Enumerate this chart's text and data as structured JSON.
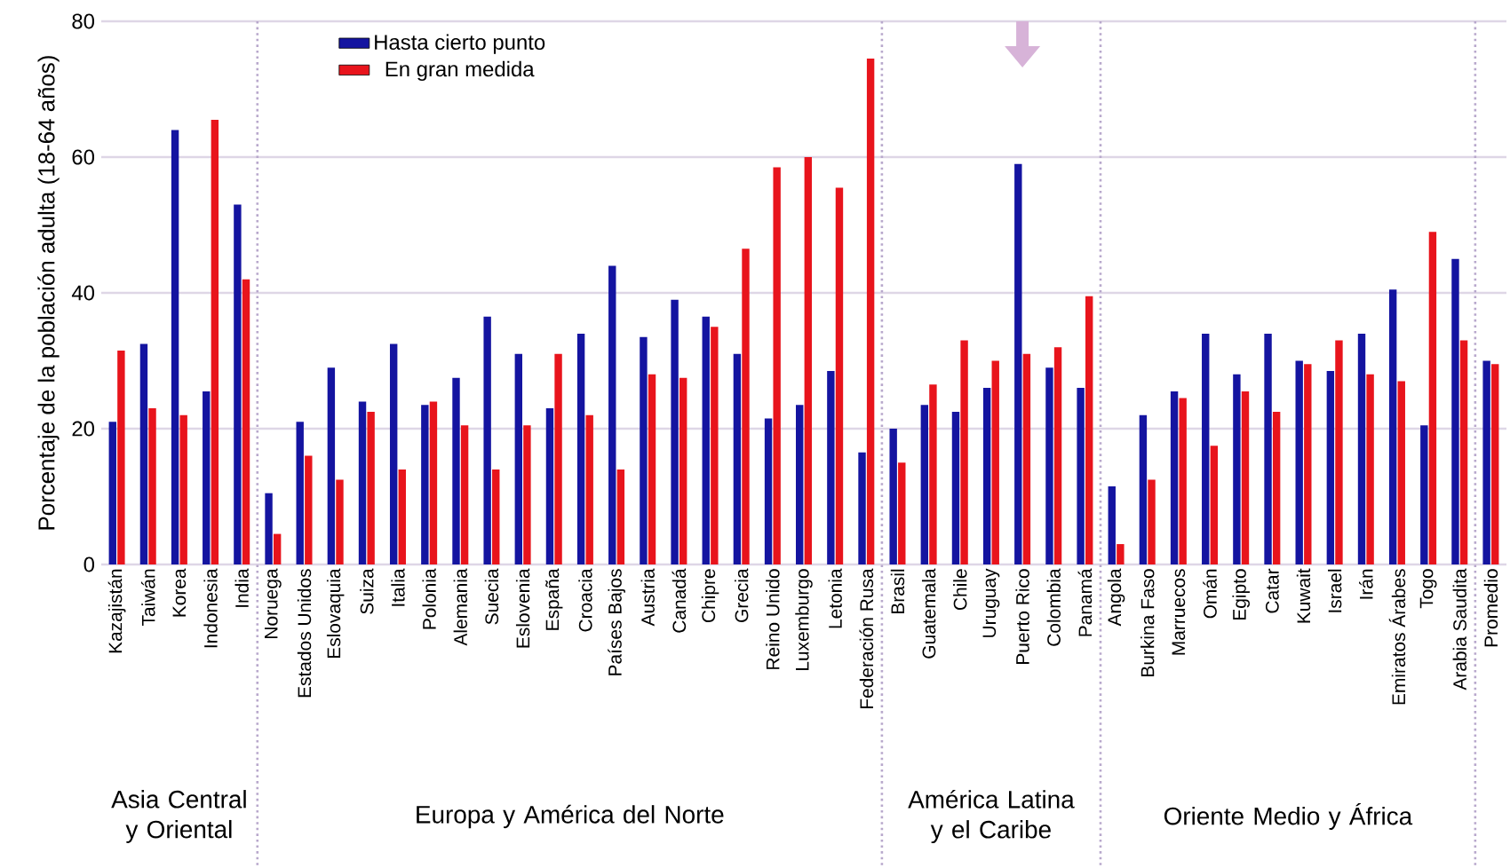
{
  "chart_data": {
    "type": "bar",
    "ylabel": "Porcentaje de la población adulta (18-64 años)",
    "categories": [
      "Kazajistán",
      "Taiwán",
      "Korea",
      "Indonesia",
      "India",
      "Noruega",
      "Estados Unidos",
      "Eslovaquia",
      "Suiza",
      "Italia",
      "Polonia",
      "Alemania",
      "Suecia",
      "Eslovenia",
      "España",
      "Croacia",
      "Países Bajos",
      "Austria",
      "Canadá",
      "Chipre",
      "Grecia",
      "Reino Unido",
      "Luxemburgo",
      "Letonia",
      "Federación Rusa",
      "Brasil",
      "Guatemala",
      "Chile",
      "Uruguay",
      "Puerto Rico",
      "Colombia",
      "Panamá",
      "Angola",
      "Burkina Faso",
      "Marruecos",
      "Omán",
      "Egipto",
      "Catar",
      "Kuwait",
      "Israel",
      "Irán",
      "Emiratos Árabes",
      "Togo",
      "Arabia Saudita",
      "Promedio"
    ],
    "series": [
      {
        "name": "Hasta cierto punto",
        "color": "#1414a0",
        "values": [
          21,
          32.5,
          64,
          25.5,
          53,
          10.5,
          21,
          29,
          24,
          32.5,
          23.5,
          27.5,
          36.5,
          31,
          23,
          34,
          44,
          33.5,
          39,
          36.5,
          31,
          21.5,
          23.5,
          28.5,
          16.5,
          20,
          23.5,
          22.5,
          26,
          59,
          29,
          26,
          11.5,
          22,
          25.5,
          34,
          28,
          34,
          30,
          28.5,
          34,
          40.5,
          20.5,
          45,
          30
        ]
      },
      {
        "name": "En gran medida",
        "color": "#e8141c",
        "values": [
          31.5,
          23,
          22,
          65.5,
          42,
          4.5,
          16,
          12.5,
          22.5,
          14,
          24,
          20.5,
          14,
          20.5,
          31,
          22,
          14,
          28,
          27.5,
          35,
          46.5,
          58.5,
          60,
          55.5,
          74.5,
          15,
          26.5,
          33,
          30,
          31,
          32,
          39.5,
          3,
          12.5,
          24.5,
          17.5,
          25.5,
          22.5,
          29.5,
          33,
          28,
          27,
          49,
          33,
          29.5
        ]
      }
    ],
    "annotations": [
      "Asia Central y Oriental",
      "Europa y América del Norte",
      "América Latina y el Caribe",
      "Oriente Medio y África"
    ],
    "ylim": [
      0,
      80
    ],
    "yticks": [
      0,
      20,
      40,
      60,
      80
    ],
    "grid": "y",
    "legend": "top left"
  }
}
